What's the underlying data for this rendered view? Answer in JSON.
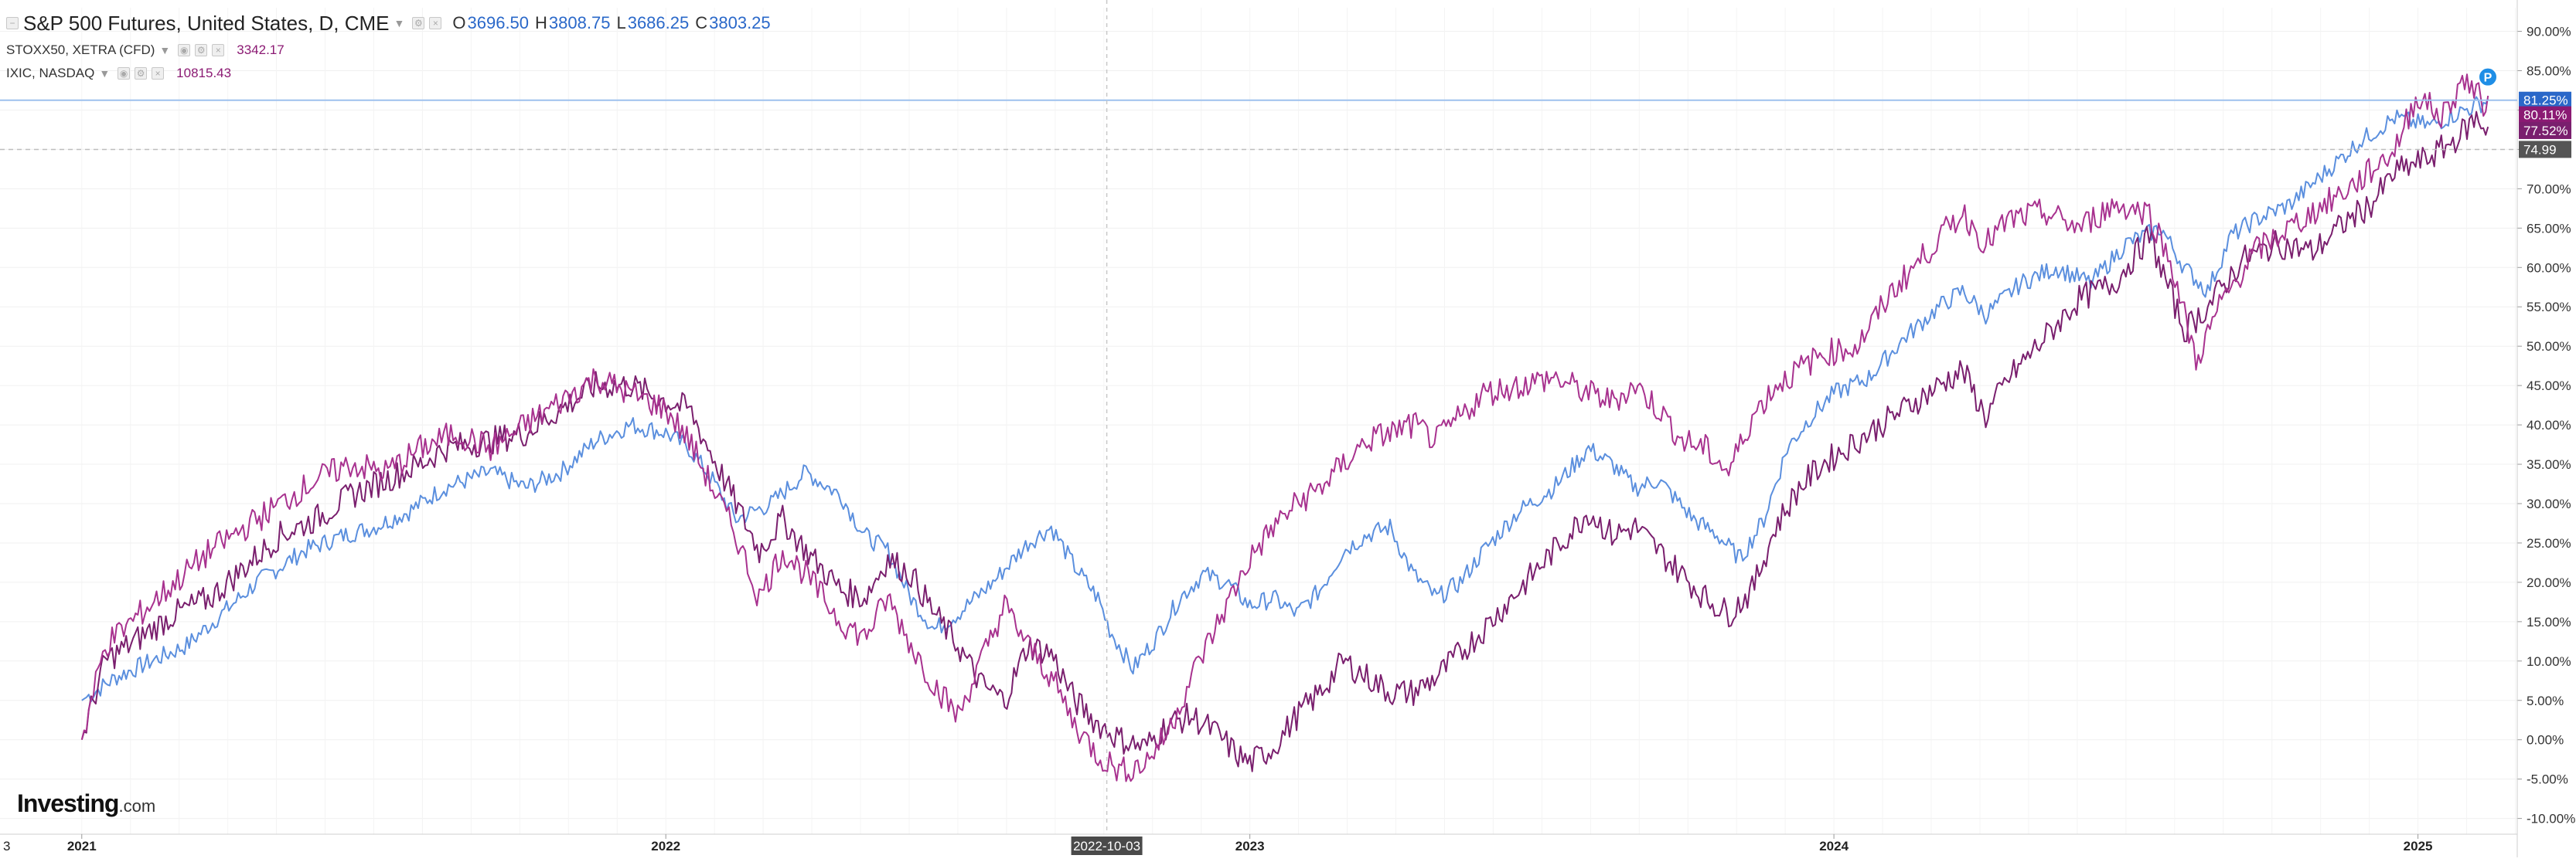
{
  "legend": {
    "main": {
      "title": "S&P 500 Futures, United States, D, CME",
      "open_label": "O",
      "open": "3696.50",
      "high_label": "H",
      "high": "3808.75",
      "low_label": "L",
      "low": "3686.25",
      "close_label": "C",
      "close": "3803.25"
    },
    "series2": {
      "title": "STOXX50, XETRA (CFD)",
      "value": "3342.17"
    },
    "series3": {
      "title": "IXIC, NASDAQ",
      "value": "10815.43"
    }
  },
  "logo": {
    "text": "Investing",
    "suffix": ".com"
  },
  "chart_data": {
    "type": "line",
    "y_unit": "%",
    "ylim": [
      -12,
      93
    ],
    "y_ticks": [
      "90.00%",
      "85.00%",
      "80.00%",
      "75.00%",
      "70.00%",
      "65.00%",
      "60.00%",
      "55.00%",
      "50.00%",
      "45.00%",
      "40.00%",
      "35.00%",
      "30.00%",
      "25.00%",
      "20.00%",
      "15.00%",
      "10.00%",
      "5.00%",
      "0.00%",
      "-5.00%",
      "-10.00%"
    ],
    "x_ticks": [
      "2021",
      "2022",
      "2023",
      "2024",
      "2025"
    ],
    "x_tick_start_label": "3",
    "crosshair_label": "2022-10-03",
    "price_line_label": "74.99",
    "last_value_labels": [
      "81.25%",
      "80.11%",
      "77.52%"
    ],
    "marker_label": "P",
    "colors": {
      "spx": "#2a68c9",
      "stoxx": "#7a1f6e",
      "ixic": "#a8328f",
      "nasdaq_badge": "#8b1a73",
      "price_badge": "#555555",
      "hline": "#9ec1ee"
    },
    "series": [
      {
        "name": "S&P 500 Futures",
        "color": "#5b8fde",
        "last_label": "81.25%",
        "points": [
          [
            2021.0,
            5
          ],
          [
            2021.06,
            8
          ],
          [
            2021.12,
            10
          ],
          [
            2021.18,
            12
          ],
          [
            2021.24,
            16
          ],
          [
            2021.3,
            20
          ],
          [
            2021.38,
            24
          ],
          [
            2021.45,
            26
          ],
          [
            2021.5,
            27
          ],
          [
            2021.56,
            29
          ],
          [
            2021.62,
            32
          ],
          [
            2021.7,
            34
          ],
          [
            2021.76,
            32
          ],
          [
            2021.82,
            34
          ],
          [
            2021.88,
            38
          ],
          [
            2021.94,
            40
          ],
          [
            2022.0,
            39
          ],
          [
            2022.04,
            37
          ],
          [
            2022.08,
            33
          ],
          [
            2022.12,
            28
          ],
          [
            2022.18,
            30
          ],
          [
            2022.24,
            34
          ],
          [
            2022.3,
            31
          ],
          [
            2022.34,
            26
          ],
          [
            2022.38,
            24
          ],
          [
            2022.42,
            18
          ],
          [
            2022.46,
            14
          ],
          [
            2022.5,
            16
          ],
          [
            2022.56,
            20
          ],
          [
            2022.62,
            25
          ],
          [
            2022.66,
            27
          ],
          [
            2022.7,
            22
          ],
          [
            2022.74,
            18
          ],
          [
            2022.76,
            14
          ],
          [
            2022.8,
            9
          ],
          [
            2022.84,
            13
          ],
          [
            2022.88,
            18
          ],
          [
            2022.92,
            21
          ],
          [
            2022.96,
            20
          ],
          [
            2023.0,
            17
          ],
          [
            2023.04,
            18
          ],
          [
            2023.08,
            16
          ],
          [
            2023.12,
            19
          ],
          [
            2023.16,
            24
          ],
          [
            2023.2,
            26
          ],
          [
            2023.24,
            27
          ],
          [
            2023.28,
            21
          ],
          [
            2023.32,
            18
          ],
          [
            2023.36,
            20
          ],
          [
            2023.4,
            24
          ],
          [
            2023.46,
            29
          ],
          [
            2023.52,
            32
          ],
          [
            2023.58,
            37
          ],
          [
            2023.62,
            35
          ],
          [
            2023.66,
            32
          ],
          [
            2023.7,
            33
          ],
          [
            2023.76,
            28
          ],
          [
            2023.8,
            26
          ],
          [
            2023.84,
            23
          ],
          [
            2023.88,
            28
          ],
          [
            2023.92,
            37
          ],
          [
            2023.96,
            41
          ],
          [
            2024.0,
            44
          ],
          [
            2024.06,
            46
          ],
          [
            2024.12,
            51
          ],
          [
            2024.18,
            55
          ],
          [
            2024.22,
            57
          ],
          [
            2024.26,
            54
          ],
          [
            2024.32,
            58
          ],
          [
            2024.38,
            60
          ],
          [
            2024.44,
            58
          ],
          [
            2024.5,
            63
          ],
          [
            2024.56,
            65
          ],
          [
            2024.6,
            60
          ],
          [
            2024.64,
            57
          ],
          [
            2024.68,
            64
          ],
          [
            2024.72,
            66
          ],
          [
            2024.78,
            68
          ],
          [
            2024.84,
            72
          ],
          [
            2024.9,
            76
          ],
          [
            2024.96,
            79
          ],
          [
            2025.02,
            78
          ],
          [
            2025.08,
            80
          ],
          [
            2025.12,
            81.25
          ]
        ]
      },
      {
        "name": "STOXX50",
        "color": "#7a1f6e",
        "last_label": "77.52%",
        "points": [
          [
            2021.0,
            0
          ],
          [
            2021.04,
            10
          ],
          [
            2021.1,
            13
          ],
          [
            2021.16,
            16
          ],
          [
            2021.22,
            18
          ],
          [
            2021.28,
            22
          ],
          [
            2021.34,
            26
          ],
          [
            2021.4,
            28
          ],
          [
            2021.46,
            31
          ],
          [
            2021.52,
            33
          ],
          [
            2021.58,
            35
          ],
          [
            2021.62,
            37
          ],
          [
            2021.7,
            38
          ],
          [
            2021.76,
            39
          ],
          [
            2021.82,
            42
          ],
          [
            2021.88,
            45
          ],
          [
            2021.94,
            45
          ],
          [
            2022.0,
            43
          ],
          [
            2022.04,
            42
          ],
          [
            2022.08,
            36
          ],
          [
            2022.12,
            30
          ],
          [
            2022.16,
            24
          ],
          [
            2022.2,
            28
          ],
          [
            2022.24,
            24
          ],
          [
            2022.3,
            19
          ],
          [
            2022.34,
            18
          ],
          [
            2022.38,
            23
          ],
          [
            2022.42,
            21
          ],
          [
            2022.46,
            16
          ],
          [
            2022.5,
            12
          ],
          [
            2022.54,
            7
          ],
          [
            2022.58,
            5
          ],
          [
            2022.62,
            12
          ],
          [
            2022.66,
            11
          ],
          [
            2022.7,
            5
          ],
          [
            2022.74,
            2
          ],
          [
            2022.78,
            0
          ],
          [
            2022.82,
            -1
          ],
          [
            2022.86,
            2
          ],
          [
            2022.9,
            3
          ],
          [
            2022.94,
            1
          ],
          [
            2022.98,
            -2
          ],
          [
            2023.0,
            -3
          ],
          [
            2023.04,
            -1
          ],
          [
            2023.08,
            3
          ],
          [
            2023.12,
            6
          ],
          [
            2023.16,
            10
          ],
          [
            2023.2,
            8
          ],
          [
            2023.24,
            6
          ],
          [
            2023.28,
            6
          ],
          [
            2023.32,
            8
          ],
          [
            2023.36,
            11
          ],
          [
            2023.4,
            14
          ],
          [
            2023.46,
            19
          ],
          [
            2023.52,
            24
          ],
          [
            2023.58,
            29
          ],
          [
            2023.62,
            26
          ],
          [
            2023.66,
            27
          ],
          [
            2023.7,
            24
          ],
          [
            2023.74,
            21
          ],
          [
            2023.78,
            18
          ],
          [
            2023.82,
            16
          ],
          [
            2023.86,
            19
          ],
          [
            2023.9,
            27
          ],
          [
            2023.94,
            32
          ],
          [
            2023.98,
            35
          ],
          [
            2024.04,
            38
          ],
          [
            2024.08,
            40
          ],
          [
            2024.12,
            42
          ],
          [
            2024.18,
            45
          ],
          [
            2024.22,
            47
          ],
          [
            2024.26,
            41
          ],
          [
            2024.3,
            46
          ],
          [
            2024.36,
            51
          ],
          [
            2024.42,
            56
          ],
          [
            2024.48,
            58
          ],
          [
            2024.54,
            64
          ],
          [
            2024.6,
            52
          ],
          [
            2024.64,
            55
          ],
          [
            2024.7,
            61
          ],
          [
            2024.76,
            63
          ],
          [
            2024.82,
            62
          ],
          [
            2024.88,
            66
          ],
          [
            2024.92,
            68
          ],
          [
            2024.96,
            72
          ],
          [
            2025.02,
            74
          ],
          [
            2025.06,
            76
          ],
          [
            2025.1,
            79
          ],
          [
            2025.12,
            77.52
          ]
        ]
      },
      {
        "name": "IXIC, NASDAQ",
        "color": "#a8328f",
        "last_label": "80.11%",
        "points": [
          [
            2021.0,
            0
          ],
          [
            2021.04,
            12
          ],
          [
            2021.1,
            16
          ],
          [
            2021.16,
            20
          ],
          [
            2021.22,
            24
          ],
          [
            2021.28,
            27
          ],
          [
            2021.34,
            30
          ],
          [
            2021.4,
            33
          ],
          [
            2021.46,
            35
          ],
          [
            2021.52,
            34
          ],
          [
            2021.58,
            37
          ],
          [
            2021.64,
            39
          ],
          [
            2021.7,
            37
          ],
          [
            2021.76,
            40
          ],
          [
            2021.82,
            43
          ],
          [
            2021.88,
            46
          ],
          [
            2021.94,
            44
          ],
          [
            2022.0,
            42
          ],
          [
            2022.04,
            38
          ],
          [
            2022.08,
            32
          ],
          [
            2022.12,
            26
          ],
          [
            2022.16,
            18
          ],
          [
            2022.2,
            24
          ],
          [
            2022.24,
            21
          ],
          [
            2022.3,
            15
          ],
          [
            2022.34,
            13
          ],
          [
            2022.38,
            18
          ],
          [
            2022.42,
            12
          ],
          [
            2022.46,
            7
          ],
          [
            2022.5,
            3
          ],
          [
            2022.54,
            10
          ],
          [
            2022.58,
            17
          ],
          [
            2022.62,
            12
          ],
          [
            2022.66,
            8
          ],
          [
            2022.7,
            2
          ],
          [
            2022.74,
            -2
          ],
          [
            2022.78,
            -4
          ],
          [
            2022.82,
            -3
          ],
          [
            2022.86,
            1
          ],
          [
            2022.9,
            8
          ],
          [
            2022.94,
            14
          ],
          [
            2022.98,
            20
          ],
          [
            2023.0,
            23
          ],
          [
            2023.04,
            27
          ],
          [
            2023.08,
            30
          ],
          [
            2023.12,
            32
          ],
          [
            2023.16,
            35
          ],
          [
            2023.2,
            38
          ],
          [
            2023.24,
            39
          ],
          [
            2023.28,
            40
          ],
          [
            2023.32,
            38
          ],
          [
            2023.36,
            41
          ],
          [
            2023.4,
            44
          ],
          [
            2023.46,
            45
          ],
          [
            2023.52,
            46
          ],
          [
            2023.58,
            44
          ],
          [
            2023.62,
            43
          ],
          [
            2023.66,
            45
          ],
          [
            2023.7,
            42
          ],
          [
            2023.74,
            38
          ],
          [
            2023.78,
            37
          ],
          [
            2023.82,
            34
          ],
          [
            2023.86,
            41
          ],
          [
            2023.9,
            45
          ],
          [
            2023.94,
            47
          ],
          [
            2023.98,
            49
          ],
          [
            2024.04,
            50
          ],
          [
            2024.1,
            57
          ],
          [
            2024.16,
            62
          ],
          [
            2024.22,
            67
          ],
          [
            2024.26,
            63
          ],
          [
            2024.3,
            66
          ],
          [
            2024.36,
            67
          ],
          [
            2024.42,
            65
          ],
          [
            2024.48,
            68
          ],
          [
            2024.54,
            67
          ],
          [
            2024.58,
            60
          ],
          [
            2024.62,
            48
          ],
          [
            2024.66,
            55
          ],
          [
            2024.72,
            62
          ],
          [
            2024.78,
            65
          ],
          [
            2024.84,
            68
          ],
          [
            2024.9,
            71
          ],
          [
            2024.96,
            75
          ],
          [
            2025.0,
            82
          ],
          [
            2025.04,
            79
          ],
          [
            2025.08,
            84
          ],
          [
            2025.12,
            80.11
          ]
        ]
      }
    ]
  }
}
